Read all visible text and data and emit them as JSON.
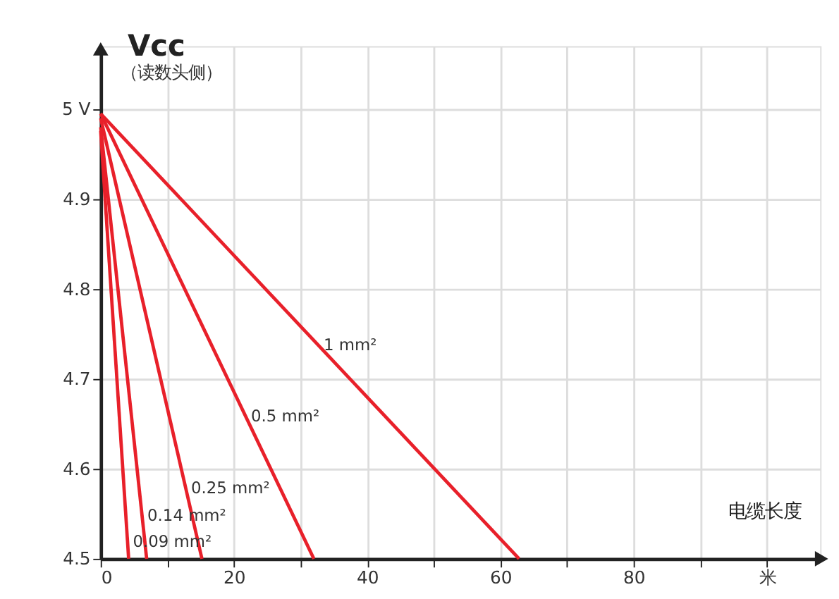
{
  "chart_data": {
    "type": "line",
    "ylabel": "Vcc",
    "xlabel": "电缆长度",
    "annotations": [
      "（读数头侧）"
    ],
    "xlim": [
      0,
      108
    ],
    "ylim": [
      4.5,
      5.07
    ],
    "xticks": [
      0,
      {
        "value": 10,
        "label": null
      },
      20,
      {
        "value": 30,
        "label": null
      },
      40,
      {
        "value": 50,
        "label": null
      },
      60,
      {
        "value": 70,
        "label": null
      },
      80,
      {
        "value": 90,
        "label": null
      },
      {
        "value": 100,
        "label": "米"
      }
    ],
    "yticks": [
      4.5,
      4.6,
      4.7,
      4.8,
      4.9,
      {
        "value": 5,
        "label": "5 V"
      }
    ],
    "grid": true,
    "line_style": "solid",
    "marker": "none",
    "series": [
      {
        "name": "1 mm²",
        "color": "#e8202a",
        "x": [
          0,
          62.8
        ],
        "values": [
          4.995,
          4.5
        ]
      },
      {
        "name": "0.5 mm²",
        "color": "#e8202a",
        "x": [
          0,
          32
        ],
        "values": [
          4.995,
          4.5
        ]
      },
      {
        "name": "0.25 mm²",
        "color": "#e8202a",
        "x": [
          0,
          15.2
        ],
        "values": [
          4.99,
          4.5
        ]
      },
      {
        "name": "0.14 mm²",
        "color": "#e8202a",
        "x": [
          0,
          6.9
        ],
        "values": [
          4.98,
          4.5
        ]
      },
      {
        "name": "0.09 mm²",
        "color": "#e8202a",
        "x": [
          0,
          4.2
        ],
        "values": [
          4.976,
          4.5
        ]
      }
    ]
  }
}
